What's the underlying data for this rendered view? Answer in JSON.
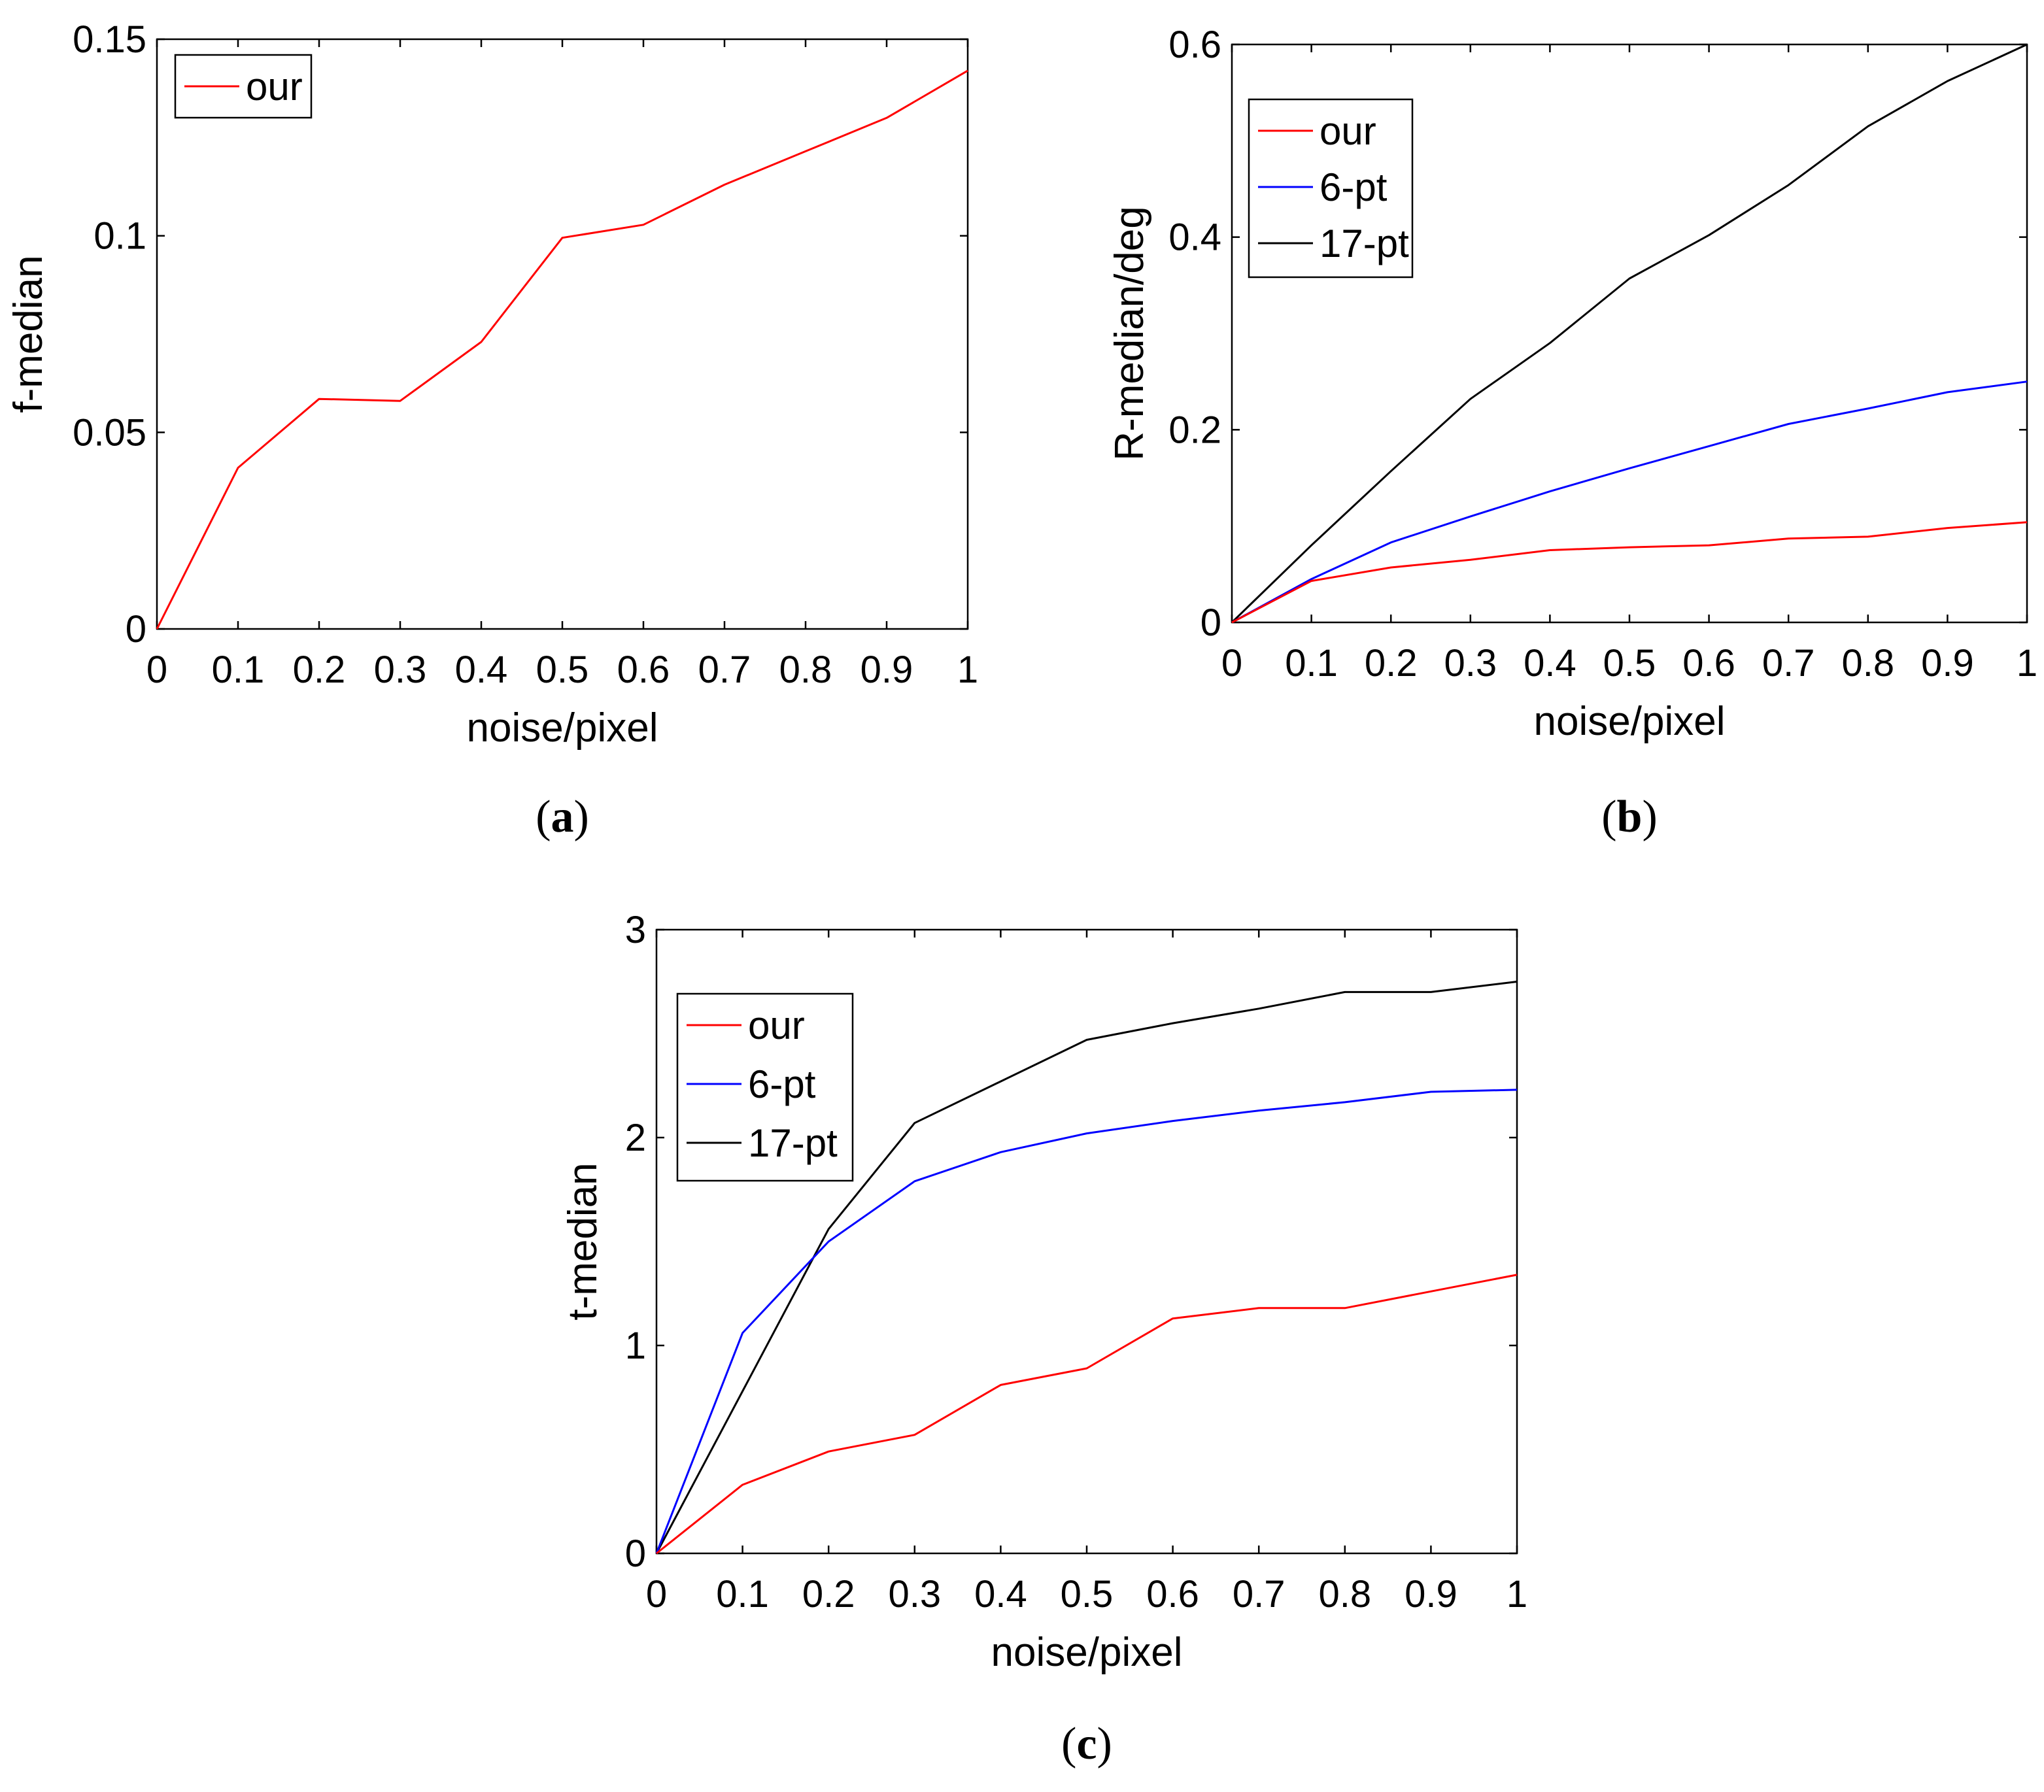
{
  "chart_data": [
    {
      "panel": "a",
      "type": "line",
      "caption": "(a)",
      "caption_letter": "a",
      "xlabel": "noise/pixel",
      "ylabel": "f-median",
      "xlim": [
        0,
        1
      ],
      "ylim": [
        0,
        0.15
      ],
      "x": [
        0,
        0.1,
        0.2,
        0.3,
        0.4,
        0.5,
        0.6,
        0.7,
        0.8,
        0.9,
        1.0
      ],
      "xticks": [
        "0",
        "0.1",
        "0.2",
        "0.3",
        "0.4",
        "0.5",
        "0.6",
        "0.7",
        "0.8",
        "0.9",
        "1"
      ],
      "yticks": [
        {
          "v": 0,
          "t": "0"
        },
        {
          "v": 0.05,
          "t": "0.05"
        },
        {
          "v": 0.1,
          "t": "0.1"
        },
        {
          "v": 0.15,
          "t": "0.15"
        }
      ],
      "legend": "top-left",
      "series": [
        {
          "name": "our",
          "color": "#ff0000",
          "values": [
            0,
            0.041,
            0.0585,
            0.058,
            0.073,
            0.0995,
            0.1028,
            0.113,
            0.1215,
            0.13,
            0.142
          ]
        }
      ]
    },
    {
      "panel": "b",
      "type": "line",
      "caption": "(b)",
      "caption_letter": "b",
      "xlabel": "noise/pixel",
      "ylabel": "R-median/deg",
      "xlim": [
        0,
        1
      ],
      "ylim": [
        0,
        0.6
      ],
      "x": [
        0,
        0.1,
        0.2,
        0.3,
        0.4,
        0.5,
        0.6,
        0.7,
        0.8,
        0.9,
        1.0
      ],
      "xticks": [
        "0",
        "0.1",
        "0.2",
        "0.3",
        "0.4",
        "0.5",
        "0.6",
        "0.7",
        "0.8",
        "0.9",
        "1"
      ],
      "yticks": [
        {
          "v": 0,
          "t": "0"
        },
        {
          "v": 0.2,
          "t": "0.2"
        },
        {
          "v": 0.4,
          "t": "0.4"
        },
        {
          "v": 0.6,
          "t": "0.6"
        }
      ],
      "legend": "top-left",
      "series": [
        {
          "name": "our",
          "color": "#ff0000",
          "values": [
            0,
            0.043,
            0.057,
            0.065,
            0.075,
            0.078,
            0.08,
            0.087,
            0.089,
            0.098,
            0.104
          ]
        },
        {
          "name": "6-pt",
          "color": "#0000ff",
          "values": [
            0,
            0.045,
            0.083,
            0.11,
            0.136,
            0.16,
            0.183,
            0.206,
            0.222,
            0.239,
            0.25
          ]
        },
        {
          "name": "17-pt",
          "color": "#000000",
          "values": [
            0,
            0.08,
            0.157,
            0.232,
            0.29,
            0.357,
            0.402,
            0.454,
            0.515,
            0.562,
            0.6
          ]
        }
      ]
    },
    {
      "panel": "c",
      "type": "line",
      "caption": "(c)",
      "caption_letter": "c",
      "xlabel": "noise/pixel",
      "ylabel": "t-median",
      "xlim": [
        0,
        1
      ],
      "ylim": [
        0,
        3
      ],
      "x": [
        0,
        0.1,
        0.2,
        0.3,
        0.4,
        0.5,
        0.6,
        0.7,
        0.8,
        0.9,
        1.0
      ],
      "xticks": [
        "0",
        "0.1",
        "0.2",
        "0.3",
        "0.4",
        "0.5",
        "0.6",
        "0.7",
        "0.8",
        "0.9",
        "1"
      ],
      "yticks": [
        {
          "v": 0,
          "t": "0"
        },
        {
          "v": 1,
          "t": "1"
        },
        {
          "v": 2,
          "t": "2"
        },
        {
          "v": 3,
          "t": "3"
        }
      ],
      "legend": "top-left",
      "series": [
        {
          "name": "our",
          "color": "#ff0000",
          "values": [
            0,
            0.33,
            0.49,
            0.57,
            0.81,
            0.89,
            1.13,
            1.18,
            1.18,
            1.26,
            1.34
          ]
        },
        {
          "name": "6-pt",
          "color": "#0000ff",
          "values": [
            0,
            1.06,
            1.5,
            1.79,
            1.93,
            2.02,
            2.08,
            2.13,
            2.17,
            2.22,
            2.23
          ]
        },
        {
          "name": "17-pt",
          "color": "#000000",
          "values": [
            0,
            0.78,
            1.56,
            2.07,
            2.27,
            2.47,
            2.55,
            2.62,
            2.7,
            2.7,
            2.75
          ]
        }
      ]
    }
  ]
}
